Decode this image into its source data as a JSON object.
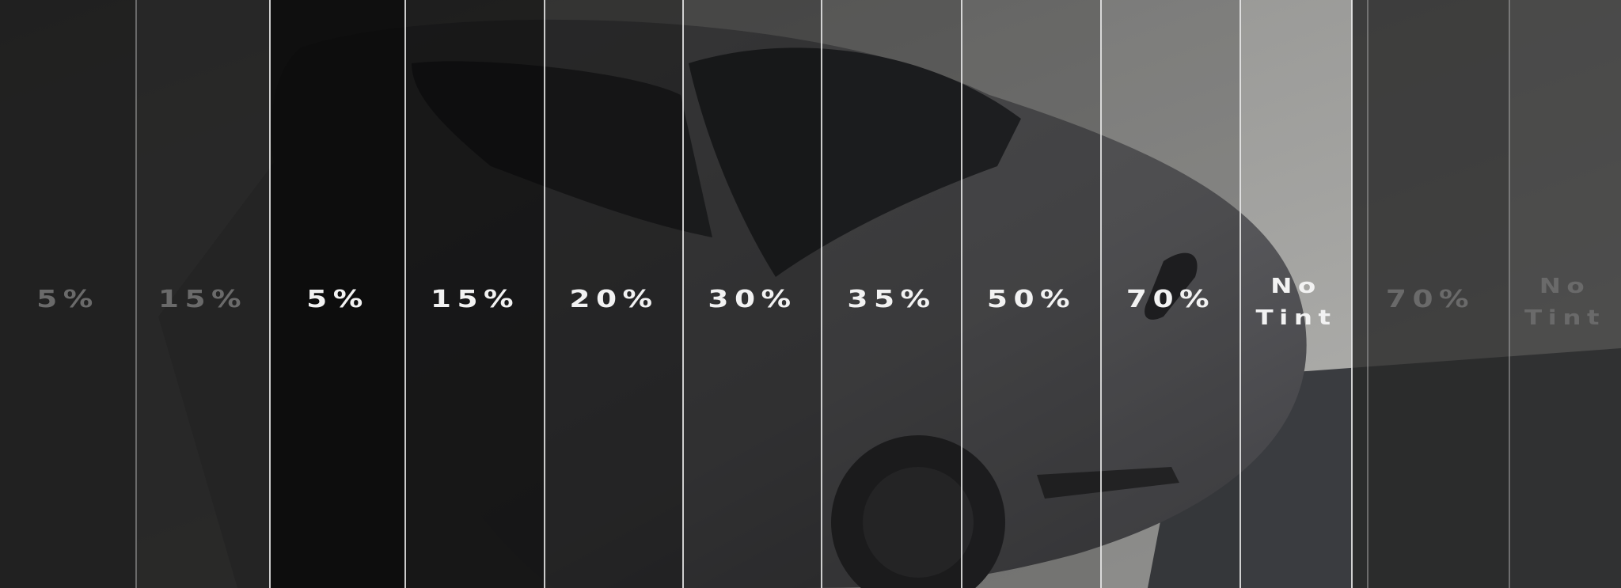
{
  "image": {
    "subject": "car-window-tint-comparison"
  },
  "strips": [
    {
      "label": "5%",
      "dim": true
    },
    {
      "label": "15%",
      "dim": true
    },
    {
      "label": "5%",
      "dim": false
    },
    {
      "label": "15%",
      "dim": false
    },
    {
      "label": "20%",
      "dim": false
    },
    {
      "label": "30%",
      "dim": false
    },
    {
      "label": "35%",
      "dim": false
    },
    {
      "label": "50%",
      "dim": false
    },
    {
      "label": "70%",
      "dim": false
    },
    {
      "label_line1": "No",
      "label_line2": "Tint",
      "dim": false
    },
    {
      "label": "70%",
      "dim": true
    },
    {
      "label_line1": "No",
      "label_line2": "Tint",
      "dim": true
    }
  ]
}
